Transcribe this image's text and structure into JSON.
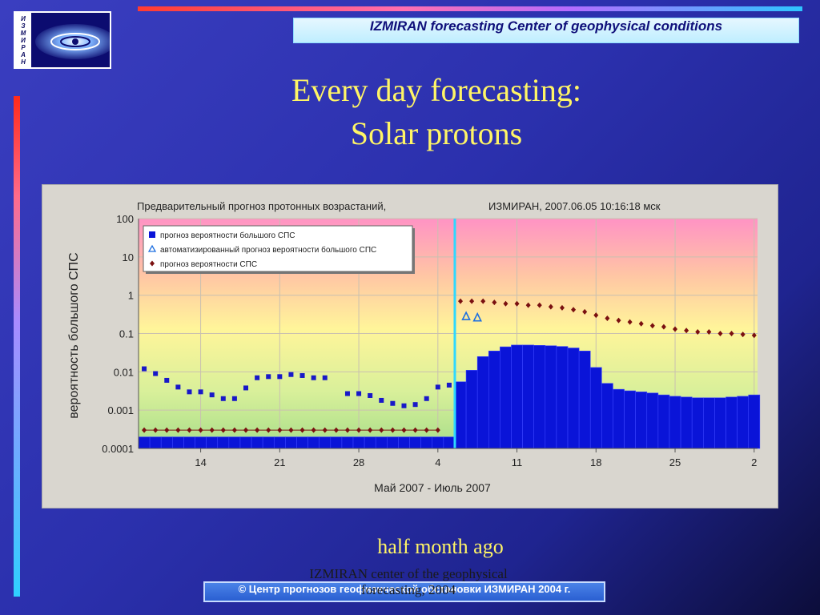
{
  "slide": {
    "logo_letters": [
      "И",
      "З",
      "М",
      "И",
      "Р",
      "А",
      "Н"
    ],
    "header": "IZMIRAN forecasting Center of geophysical conditions",
    "title_line1": "Every day forecasting:",
    "title_line2": "Solar protons",
    "caption": "half month ago",
    "footer": "© Центр прогнозов геофизической обстановки ИЗМИРАН  2004 г.",
    "overlay_line1": "IZMIRAN center of the geophysical",
    "overlay_line2": "forecasting, 2004"
  },
  "colors": {
    "background": "#2b30ad",
    "title": "#fff566",
    "bar_series": "#0a14d8",
    "triangle_series": "#1e6fe0",
    "diamond_series": "#7a1010",
    "divider": "#2fd8ff"
  },
  "chart_data": {
    "type": "bar",
    "title": "Предварительный прогноз протонных возрастаний,",
    "title_right": "ИЗМИРАН, 2007.06.05 10:16:18 мск",
    "xlabel": "Май 2007 - Июль 2007",
    "ylabel": "вероятность большого СПС",
    "y_scale": "log",
    "ylim": [
      0.0001,
      100
    ],
    "y_ticks": [
      "0.0001",
      "0.001",
      "0.01",
      "0.1",
      "1",
      "10",
      "100"
    ],
    "x_ticks": [
      {
        "day": 14,
        "label": "14"
      },
      {
        "day": 21,
        "label": "21"
      },
      {
        "day": 28,
        "label": "28"
      },
      {
        "day": 35,
        "label": "4"
      },
      {
        "day": 42,
        "label": "11"
      },
      {
        "day": 49,
        "label": "18"
      },
      {
        "day": 56,
        "label": "25"
      },
      {
        "day": 63,
        "label": "2"
      }
    ],
    "x_range_day": [
      9,
      63.3
    ],
    "forecast_start_day": 36.5,
    "legend_position": "top-left",
    "series": [
      {
        "name": "прогноз вероятности большого СПС",
        "marker": "bar",
        "days": [
          9,
          10,
          11,
          12,
          13,
          14,
          15,
          16,
          17,
          18,
          19,
          20,
          21,
          22,
          23,
          24,
          25,
          26,
          27,
          28,
          29,
          30,
          31,
          32,
          33,
          34,
          35,
          36,
          37,
          38,
          39,
          40,
          41,
          42,
          43,
          44,
          45,
          46,
          47,
          48,
          49,
          50,
          51,
          52,
          53,
          54,
          55,
          56,
          57,
          58,
          59,
          60,
          61,
          62,
          63
        ],
        "values": [
          0.0002,
          0.0002,
          0.0002,
          0.0002,
          0.0002,
          0.0002,
          0.0002,
          0.0002,
          0.0002,
          0.0002,
          0.0002,
          0.0002,
          0.0002,
          0.0002,
          0.0002,
          0.0002,
          0.0002,
          0.0002,
          0.0002,
          0.0002,
          0.0002,
          0.0002,
          0.0002,
          0.0002,
          0.0002,
          0.0002,
          0.0002,
          0.0002,
          0.0055,
          0.011,
          0.025,
          0.035,
          0.045,
          0.05,
          0.05,
          0.049,
          0.048,
          0.046,
          0.042,
          0.035,
          0.013,
          0.005,
          0.0035,
          0.0032,
          0.003,
          0.0028,
          0.0025,
          0.0023,
          0.0022,
          0.0021,
          0.0021,
          0.0021,
          0.0022,
          0.0023,
          0.0025
        ]
      },
      {
        "name": "автоматизированный прогноз вероятности большого СПС",
        "marker": "triangle",
        "days": [
          37.5,
          38.5
        ],
        "values": [
          0.28,
          0.26
        ]
      },
      {
        "name": "прогноз вероятности СПС",
        "marker": "diamond",
        "days": [
          9,
          10,
          11,
          12,
          13,
          14,
          15,
          16,
          17,
          18,
          19,
          20,
          21,
          22,
          23,
          24,
          25,
          26,
          27,
          28,
          29,
          30,
          31,
          32,
          33,
          34,
          35,
          36,
          37,
          38,
          39,
          40,
          41,
          42,
          43,
          44,
          45,
          46,
          47,
          48,
          49,
          50,
          51,
          52,
          53,
          54,
          55,
          56,
          57,
          58,
          59,
          60,
          61,
          62,
          63
        ],
        "values": [
          0.0003,
          0.0003,
          0.0003,
          0.0003,
          0.0003,
          0.0003,
          0.0003,
          0.0003,
          0.0003,
          0.0003,
          0.0003,
          0.0003,
          0.0003,
          0.0003,
          0.0003,
          0.0003,
          0.0003,
          0.0003,
          0.0003,
          0.0003,
          0.0003,
          0.0003,
          0.0003,
          0.0003,
          0.0003,
          0.0003,
          0.0003,
          null,
          0.7,
          0.7,
          0.7,
          0.65,
          0.6,
          0.6,
          0.55,
          0.55,
          0.5,
          0.47,
          0.42,
          0.37,
          0.3,
          0.25,
          0.22,
          0.2,
          0.18,
          0.16,
          0.15,
          0.13,
          0.12,
          0.11,
          0.11,
          0.1,
          0.1,
          0.095,
          0.09
        ]
      },
      {
        "name": "",
        "marker": "square",
        "days": [
          9,
          10,
          11,
          12,
          13,
          14,
          15,
          16,
          17,
          18,
          19,
          20,
          21,
          22,
          23,
          24,
          25,
          26,
          27,
          28,
          29,
          30,
          31,
          32,
          33,
          34,
          35,
          36
        ],
        "values": [
          0.012,
          0.009,
          0.006,
          0.004,
          0.003,
          0.003,
          0.0025,
          0.002,
          0.002,
          0.0038,
          0.007,
          0.0075,
          0.0075,
          0.0085,
          0.008,
          0.007,
          0.007,
          null,
          0.0027,
          0.0027,
          0.0024,
          0.0018,
          0.0015,
          0.0013,
          0.0014,
          0.002,
          0.004,
          0.0045
        ]
      }
    ]
  }
}
